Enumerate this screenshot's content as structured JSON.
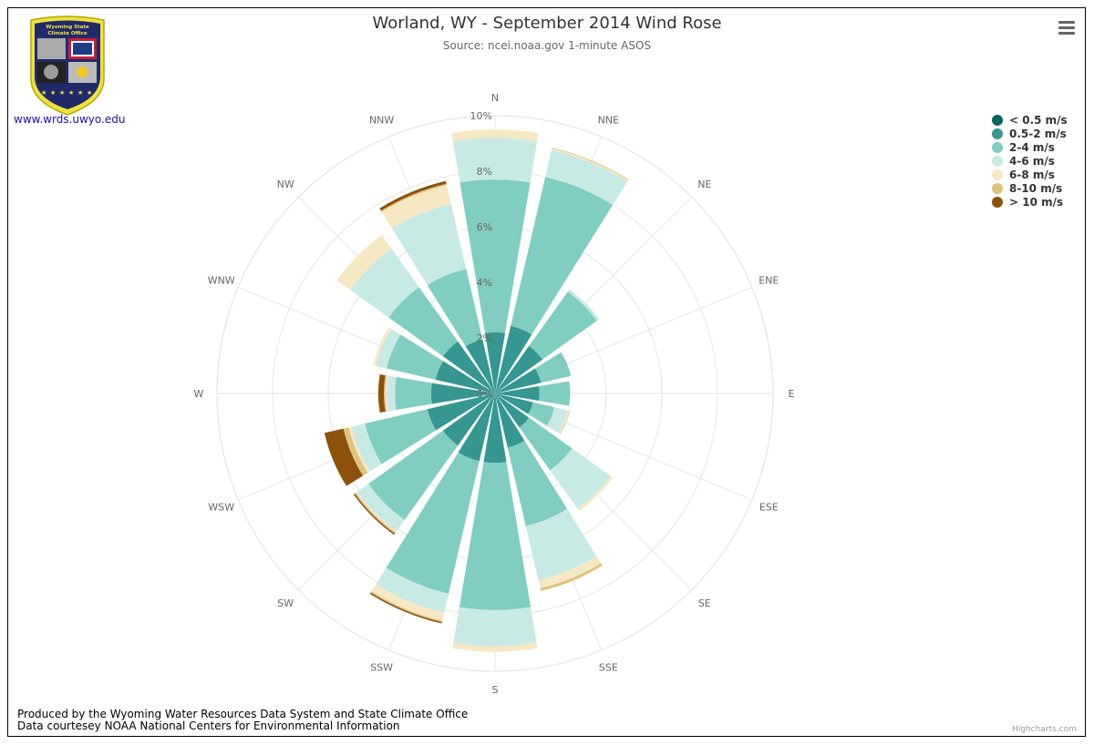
{
  "title": "Worland, WY - September 2014 Wind Rose",
  "subtitle": "Source: ncei.noaa.gov 1-minute ASOS",
  "logo": {
    "line1": "Wyoming State",
    "line2": "Climate Office",
    "link": "www.wrds.uwyo.edu"
  },
  "credits": {
    "line1": "Produced by the Wyoming Water Resources Data System and State Climate Office",
    "line2": "Data courtesey NOAA National Centers for Environmental Information",
    "highcharts": "Highcharts.com"
  },
  "chart_data": {
    "type": "windrose",
    "stacked": true,
    "categories": [
      "N",
      "NNE",
      "NE",
      "ENE",
      "E",
      "ESE",
      "SE",
      "SSE",
      "S",
      "SSW",
      "SW",
      "WSW",
      "W",
      "WNW",
      "NW",
      "NNW"
    ],
    "radial_axis": {
      "min": 0,
      "max": 10,
      "tick_values": [
        0,
        2,
        4,
        6,
        8,
        10
      ],
      "tick_labels": [
        "0%",
        "2%",
        "4%",
        "6%",
        "8%",
        "10%"
      ]
    },
    "series": [
      {
        "name": "< 0.5 m/s",
        "color": "#01665e",
        "values": [
          0,
          0,
          0,
          0,
          0,
          0,
          0,
          0,
          0,
          0,
          0,
          0,
          0,
          0,
          0,
          0
        ]
      },
      {
        "name": "0.5-2 m/s",
        "color": "#35978f",
        "values": [
          2.2,
          2.5,
          2.1,
          1.7,
          1.6,
          1.4,
          1.5,
          2.0,
          2.5,
          2.5,
          2.3,
          2.5,
          2.3,
          2.2,
          2.3,
          2.0
        ]
      },
      {
        "name": "2-4 m/s",
        "color": "#80cdc1",
        "values": [
          5.5,
          5.5,
          2.4,
          1.1,
          1.1,
          0.8,
          1.9,
          2.9,
          5.3,
          4.9,
          3.3,
          2.3,
          1.3,
          1.8,
          2.4,
          2.6
        ]
      },
      {
        "name": "4-6 m/s",
        "color": "#c7eae5",
        "values": [
          1.5,
          1.0,
          0.1,
          0.0,
          0.0,
          0.5,
          1.7,
          2.0,
          1.3,
          0.7,
          0.5,
          0.5,
          0.3,
          0.4,
          1.7,
          2.4
        ]
      },
      {
        "name": "6-8 m/s",
        "color": "#f6e8c3",
        "values": [
          0.3,
          0.05,
          0.0,
          0.0,
          0.0,
          0.05,
          0.1,
          0.3,
          0.2,
          0.3,
          0.05,
          0.1,
          0.05,
          0.1,
          0.6,
          0.7
        ]
      },
      {
        "name": "8-10 m/s",
        "color": "#dfc27d",
        "values": [
          0.0,
          0.03,
          0.0,
          0.0,
          0.0,
          0.02,
          0.0,
          0.1,
          0.0,
          0.05,
          0.05,
          0.2,
          0.05,
          0.0,
          0.0,
          0.05
        ]
      },
      {
        "name": "> 10 m/s",
        "color": "#8c510a",
        "values": [
          0.0,
          0.0,
          0.0,
          0.0,
          0.0,
          0.0,
          0.0,
          0.0,
          0.0,
          0.05,
          0.05,
          0.7,
          0.2,
          0.0,
          0.0,
          0.1
        ]
      }
    ],
    "legend_position": "top-right"
  }
}
